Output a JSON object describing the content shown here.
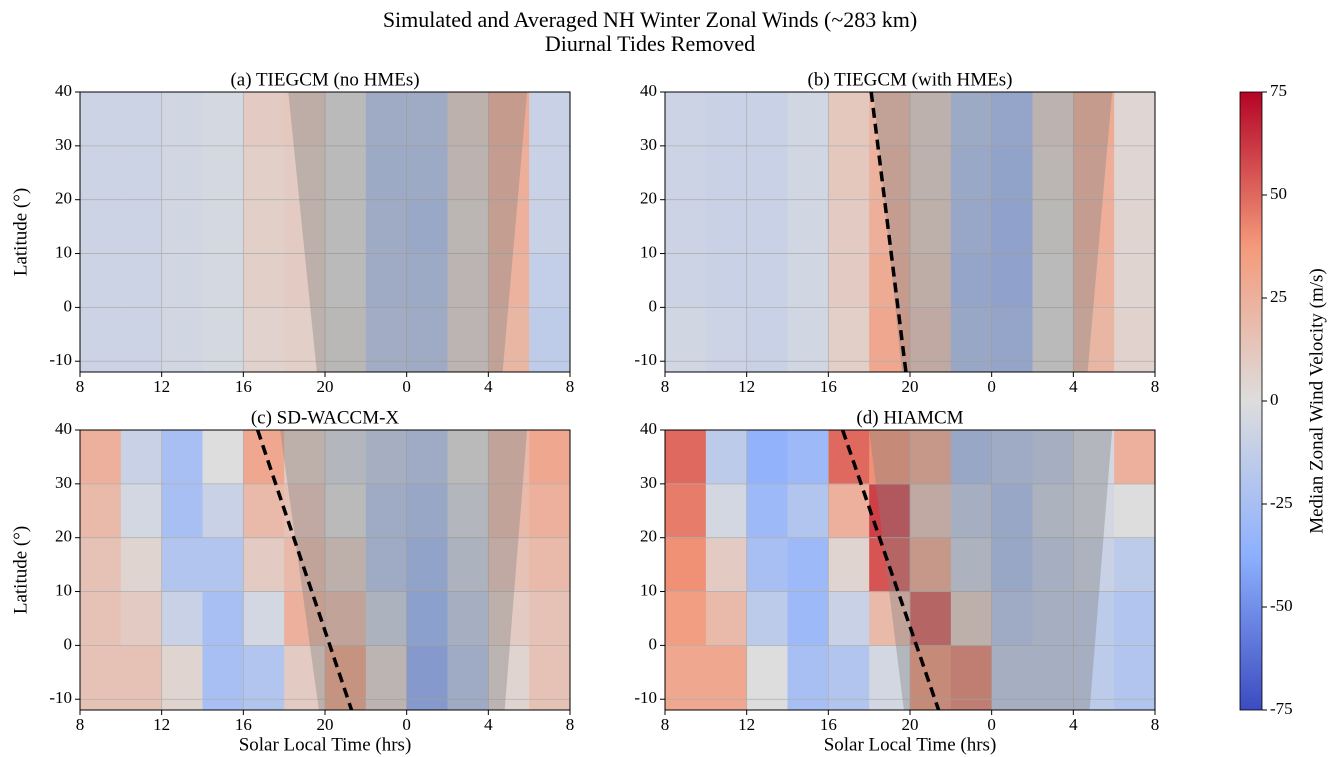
{
  "figure": {
    "title": "Simulated and Averaged NH Winter Zonal Winds (~283 km)",
    "subtitle": "Diurnal Tides Removed",
    "colorbar": {
      "label": "Median Zonal Wind Velocity (m/s)",
      "lim": [
        -75,
        75
      ],
      "ticks": [
        -75,
        -50,
        -25,
        0,
        25,
        50,
        75
      ],
      "colormap": [
        "#3b4cc0",
        "#8db0fe",
        "#dddddd",
        "#f49a7b",
        "#b40426"
      ]
    }
  },
  "chart_data": [
    {
      "type": "heatmap",
      "title": "(a) TIEGCM (no HMEs)",
      "ylabel": "Latitude (°)",
      "xbins": [
        8,
        10,
        12,
        14,
        16,
        18,
        20,
        22,
        24,
        26,
        28,
        30,
        32
      ],
      "ybins": [
        -12,
        0,
        10,
        20,
        30,
        40
      ],
      "values": [
        [
          -8,
          -8,
          -6,
          -4,
          6,
          8,
          2,
          -18,
          -20,
          5,
          22,
          -14
        ],
        [
          -8,
          -8,
          -6,
          -4,
          8,
          10,
          0,
          -20,
          -22,
          5,
          24,
          -12
        ],
        [
          -8,
          -8,
          -6,
          -4,
          8,
          10,
          0,
          -20,
          -24,
          4,
          25,
          -10
        ],
        [
          -8,
          -8,
          -6,
          -4,
          8,
          10,
          0,
          -22,
          -22,
          6,
          26,
          -10
        ],
        [
          -8,
          -8,
          -6,
          -4,
          10,
          12,
          0,
          -20,
          -20,
          8,
          28,
          -10
        ]
      ],
      "xlim": [
        8,
        32
      ],
      "ylim": [
        -12,
        40
      ],
      "xticks": [
        8,
        12,
        16,
        20,
        {
          "value": 24,
          "label": "0"
        },
        {
          "value": 28,
          "label": "4"
        },
        {
          "value": 32,
          "label": "8"
        }
      ],
      "yticks": [
        -10,
        0,
        10,
        20,
        30,
        40
      ],
      "grid": true,
      "shade": {
        "x": [
          18.2,
          29.9,
          28.7,
          19.6
        ],
        "y": [
          40,
          40,
          -12,
          -12
        ]
      }
    },
    {
      "type": "heatmap",
      "title": "(b) TIEGCM (with HMEs)",
      "xbins": [
        8,
        10,
        12,
        14,
        16,
        18,
        20,
        22,
        24,
        26,
        28,
        30,
        32
      ],
      "ybins": [
        -12,
        0,
        10,
        20,
        30,
        40
      ],
      "values": [
        [
          -6,
          -8,
          -10,
          -6,
          8,
          30,
          15,
          -25,
          -28,
          0,
          22,
          6
        ],
        [
          -8,
          -10,
          -10,
          -6,
          10,
          28,
          12,
          -28,
          -32,
          0,
          24,
          5
        ],
        [
          -8,
          -10,
          -10,
          -6,
          10,
          26,
          10,
          -26,
          -32,
          2,
          26,
          5
        ],
        [
          -8,
          -10,
          -10,
          -6,
          12,
          24,
          8,
          -24,
          -30,
          4,
          26,
          4
        ],
        [
          -8,
          -10,
          -10,
          -6,
          12,
          22,
          8,
          -22,
          -28,
          6,
          28,
          4
        ]
      ],
      "xlim": [
        8,
        32
      ],
      "ylim": [
        -12,
        40
      ],
      "xticks": [
        8,
        12,
        16,
        20,
        {
          "value": 24,
          "label": "0"
        },
        {
          "value": 28,
          "label": "4"
        },
        {
          "value": 32,
          "label": "8"
        }
      ],
      "yticks": [
        -10,
        0,
        10,
        20,
        30,
        40
      ],
      "grid": true,
      "shade": {
        "x": [
          18.2,
          29.9,
          28.7,
          19.6
        ],
        "y": [
          40,
          40,
          -12,
          -12
        ]
      },
      "line": {
        "x": [
          18.1,
          19.8
        ],
        "y": [
          40,
          -12
        ]
      }
    },
    {
      "type": "heatmap",
      "title": "(c) SD-WACCM-X",
      "ylabel": "Latitude (°)",
      "xlabel": "Solar Local Time (hrs)",
      "xbins": [
        8,
        10,
        12,
        14,
        16,
        18,
        20,
        22,
        24,
        26,
        28,
        30,
        32
      ],
      "ybins": [
        -12,
        0,
        10,
        20,
        30,
        40
      ],
      "values": [
        [
          15,
          15,
          5,
          -25,
          -20,
          10,
          35,
          5,
          -40,
          -20,
          5,
          15
        ],
        [
          15,
          10,
          -10,
          -25,
          -5,
          25,
          20,
          -10,
          -35,
          -15,
          10,
          15
        ],
        [
          15,
          5,
          -20,
          -20,
          10,
          20,
          10,
          -20,
          -30,
          -10,
          15,
          20
        ],
        [
          20,
          -5,
          -25,
          -10,
          20,
          15,
          0,
          -20,
          -25,
          -5,
          20,
          25
        ],
        [
          25,
          -10,
          -25,
          0,
          30,
          10,
          -5,
          -15,
          -20,
          0,
          20,
          30
        ]
      ],
      "xlim": [
        8,
        32
      ],
      "ylim": [
        -12,
        40
      ],
      "xticks": [
        8,
        12,
        16,
        20,
        {
          "value": 24,
          "label": "0"
        },
        {
          "value": 28,
          "label": "4"
        },
        {
          "value": 32,
          "label": "8"
        }
      ],
      "yticks": [
        -10,
        0,
        10,
        20,
        30,
        40
      ],
      "grid": true,
      "shade": {
        "x": [
          17.8,
          29.9,
          28.8,
          19.7
        ],
        "y": [
          40,
          40,
          -12,
          -12
        ]
      },
      "line": {
        "x": [
          16.7,
          21.3
        ],
        "y": [
          40,
          -12
        ]
      }
    },
    {
      "type": "heatmap",
      "title": "(d) HIAMCM",
      "xlabel": "Solar Local Time (hrs)",
      "xbins": [
        8,
        10,
        12,
        14,
        16,
        18,
        20,
        22,
        24,
        26,
        28,
        30,
        32
      ],
      "ybins": [
        -12,
        0,
        10,
        20,
        30,
        40
      ],
      "values": [
        [
          30,
          30,
          0,
          -25,
          -20,
          -5,
          40,
          45,
          -15,
          -15,
          -15,
          -20
        ],
        [
          35,
          20,
          -15,
          -30,
          -10,
          20,
          55,
          10,
          -20,
          -15,
          -15,
          -20
        ],
        [
          40,
          10,
          -25,
          -30,
          5,
          55,
          30,
          -10,
          -25,
          -15,
          -10,
          -15
        ],
        [
          45,
          -5,
          -30,
          -20,
          25,
          60,
          15,
          -15,
          -25,
          -10,
          -5,
          0
        ],
        [
          50,
          -15,
          -35,
          -30,
          50,
          40,
          30,
          -25,
          -20,
          -15,
          -5,
          25
        ]
      ],
      "xlim": [
        8,
        32
      ],
      "ylim": [
        -12,
        40
      ],
      "xticks": [
        8,
        12,
        16,
        20,
        {
          "value": 24,
          "label": "0"
        },
        {
          "value": 28,
          "label": "4"
        },
        {
          "value": 32,
          "label": "8"
        }
      ],
      "yticks": [
        -10,
        0,
        10,
        20,
        30,
        40
      ],
      "grid": true,
      "shade": {
        "x": [
          18.0,
          29.9,
          28.8,
          19.7
        ],
        "y": [
          40,
          40,
          -12,
          -12
        ]
      },
      "line": {
        "x": [
          16.7,
          21.4
        ],
        "y": [
          40,
          -12
        ]
      }
    }
  ]
}
